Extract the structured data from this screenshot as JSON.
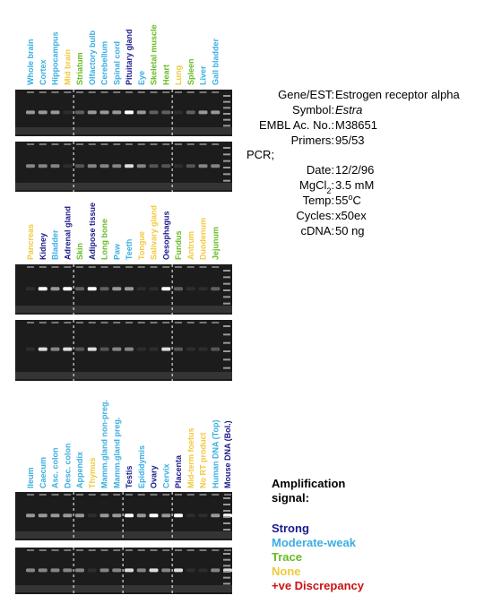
{
  "panels": [
    {
      "lanes": [
        {
          "label": "Whole brain",
          "color": "#3aaee0"
        },
        {
          "label": "Cortex",
          "color": "#3aaee0"
        },
        {
          "label": "Hippocampus",
          "color": "#3aaee0"
        },
        {
          "label": "Mid brain",
          "color": "#f0c93a"
        },
        {
          "label": "Striatum",
          "color": "#66bb22"
        },
        {
          "label": "Olfactory bulb",
          "color": "#3aaee0"
        },
        {
          "label": "Cerebellum",
          "color": "#3aaee0"
        },
        {
          "label": "Spinal cord",
          "color": "#3aaee0"
        },
        {
          "label": "Pituitary gland",
          "color": "#1a1a8c"
        },
        {
          "label": "Eye",
          "color": "#3aaee0"
        },
        {
          "label": "Skeletal muscle",
          "color": "#66bb22"
        },
        {
          "label": "Heart",
          "color": "#66bb22"
        },
        {
          "label": "Lung",
          "color": "#f0c93a"
        },
        {
          "label": "Spleen",
          "color": "#66bb22"
        },
        {
          "label": "Liver",
          "color": "#3aaee0"
        },
        {
          "label": "Gall bladder",
          "color": "#3aaee0"
        }
      ]
    },
    {
      "lanes": [
        {
          "label": "Pancreas",
          "color": "#f0c93a"
        },
        {
          "label": "Kidney",
          "color": "#1a1a8c"
        },
        {
          "label": "Bladder",
          "color": "#3aaee0"
        },
        {
          "label": "Adrenal gland",
          "color": "#1a1a8c"
        },
        {
          "label": "Skin",
          "color": "#66bb22"
        },
        {
          "label": "Adipose tissue",
          "color": "#1a1a8c"
        },
        {
          "label": "Long bone",
          "color": "#66bb22"
        },
        {
          "label": "Paw",
          "color": "#3aaee0"
        },
        {
          "label": "Teeth",
          "color": "#3aaee0"
        },
        {
          "label": "Tongue",
          "color": "#f0c93a"
        },
        {
          "label": "Salivary gland",
          "color": "#f0c93a"
        },
        {
          "label": "Oesophagus",
          "color": "#1a1a8c"
        },
        {
          "label": "Fundus",
          "color": "#66bb22"
        },
        {
          "label": "Antrum",
          "color": "#f0c93a"
        },
        {
          "label": "Duodenum",
          "color": "#f0c93a"
        },
        {
          "label": "Jejunum",
          "color": "#66bb22"
        }
      ]
    },
    {
      "lanes": [
        {
          "label": "Ileum",
          "color": "#3aaee0"
        },
        {
          "label": "Caecum",
          "color": "#3aaee0"
        },
        {
          "label": "Asc. colon",
          "color": "#3aaee0"
        },
        {
          "label": "Desc. colon",
          "color": "#3aaee0"
        },
        {
          "label": "Appendix",
          "color": "#3aaee0"
        },
        {
          "label": "Thymus",
          "color": "#f0c93a"
        },
        {
          "label": "Mamm.gland non-preg.",
          "color": "#3aaee0"
        },
        {
          "label": "Mamm.gland preg.",
          "color": "#3aaee0"
        },
        {
          "label": "Testis",
          "color": "#1a1a8c"
        },
        {
          "label": "Epididymis",
          "color": "#3aaee0"
        },
        {
          "label": "Ovary",
          "color": "#1a1a8c"
        },
        {
          "label": "Cervix",
          "color": "#3aaee0"
        },
        {
          "label": "Placenta",
          "color": "#1a1a8c"
        },
        {
          "label": "Mid-term foetus",
          "color": "#f0c93a"
        },
        {
          "label": "No RT product",
          "color": "#f0c93a"
        },
        {
          "label": "Human DNA (Top)",
          "color": "#3aaee0"
        },
        {
          "label": "Mouse DNA (Bol.)",
          "color": "#1a1a8c"
        }
      ]
    }
  ],
  "info": {
    "rows": [
      {
        "key": "Gene/EST:",
        "value": "Estrogen receptor alpha"
      },
      {
        "key": "Symbol:",
        "value": [
          {
            "text": "Estra",
            "italic": true
          }
        ]
      },
      {
        "key": "EMBL Ac. No.:",
        "value": "M38651"
      },
      {
        "key": "Primers:",
        "value": "95/53"
      }
    ],
    "pcr": "PCR;",
    "pcr_rows": [
      {
        "key": "Date:",
        "value": "12/2/96"
      },
      {
        "key": [
          {
            "text": "MgCl"
          },
          {
            "text": "2",
            "sub": true
          },
          {
            "text": ":"
          }
        ],
        "value": "3.5 mM"
      },
      {
        "key": "Temp:",
        "value": [
          {
            "text": "55"
          },
          {
            "text": "o",
            "sup": true
          },
          {
            "text": "C"
          }
        ]
      },
      {
        "key": "Cycles:",
        "value": "x50ex"
      },
      {
        "key": "cDNA:",
        "value": "50 ng"
      }
    ]
  },
  "legend": {
    "title_lines": [
      "Amplification",
      "signal:"
    ],
    "items": [
      {
        "label": "Strong",
        "color": "#1a1a8c"
      },
      {
        "label": "Moderate-weak",
        "color": "#3aaee0"
      },
      {
        "label": "Trace",
        "color": "#66bb22"
      },
      {
        "label": "None",
        "color": "#f0c93a"
      },
      {
        "label": "+ve Discrepancy",
        "color": "#cc1111"
      }
    ]
  }
}
